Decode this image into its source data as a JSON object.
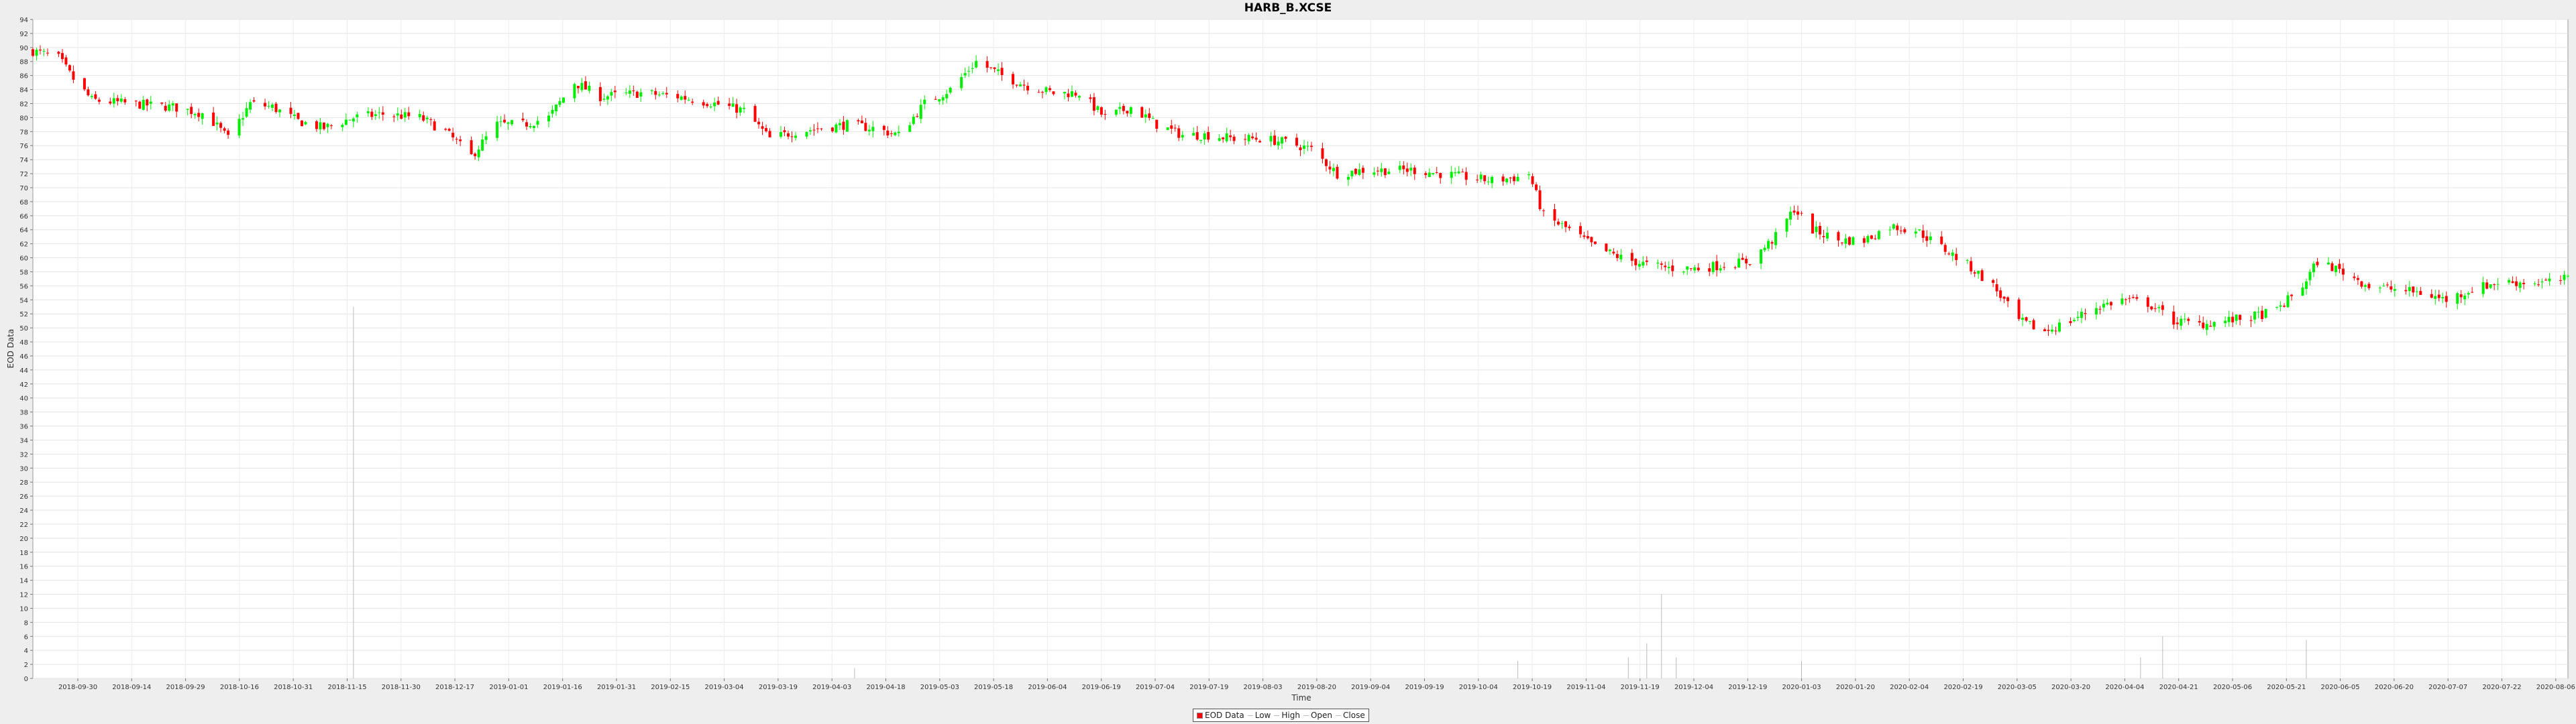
{
  "chart_data": {
    "type": "candlestick",
    "title": "HARB_B.XCSE",
    "xlabel": "Time",
    "ylabel": "EOD Data",
    "ylim": [
      0,
      94
    ],
    "xlim": [
      "2018-09-24",
      "2020-08-12"
    ],
    "grid": true,
    "legend_position": "bottom-center",
    "y_ticks": [
      0,
      2,
      4,
      6,
      8,
      10,
      12,
      14,
      16,
      18,
      20,
      22,
      24,
      26,
      28,
      30,
      32,
      34,
      36,
      38,
      40,
      42,
      44,
      46,
      48,
      50,
      52,
      54,
      56,
      58,
      60,
      62,
      64,
      66,
      68,
      70,
      72,
      74,
      76,
      78,
      80,
      82,
      84,
      86,
      88,
      90,
      92,
      94
    ],
    "x_ticks": [
      "2018-09-30",
      "2018-09-14",
      "2018-09-29",
      "2018-10-16",
      "2018-10-31",
      "2018-11-15",
      "2018-11-30",
      "2018-12-17",
      "2019-01-01",
      "2019-01-16",
      "2019-01-31",
      "2019-02-15",
      "2019-03-04",
      "2019-03-19",
      "2019-04-03",
      "2019-04-18",
      "2019-05-03",
      "2019-05-18",
      "2019-06-04",
      "2019-06-19",
      "2019-07-04",
      "2019-07-19",
      "2019-08-03",
      "2019-08-20",
      "2019-09-04",
      "2019-09-19",
      "2019-10-04",
      "2019-10-19",
      "2019-11-04",
      "2019-11-19",
      "2019-12-04",
      "2019-12-19",
      "2020-01-03",
      "2020-01-20",
      "2020-02-04",
      "2020-02-19",
      "2020-03-05",
      "2020-03-20",
      "2020-04-04",
      "2020-04-21",
      "2020-05-06",
      "2020-05-21",
      "2020-06-05",
      "2020-06-20",
      "2020-07-07",
      "2020-07-22",
      "2020-08-06"
    ],
    "legend": [
      {
        "label": "EOD Data",
        "color": "#ff0000"
      },
      {
        "label": "Low",
        "color": "#bbbbbb"
      },
      {
        "label": "High",
        "color": "#bbbbbb"
      },
      {
        "label": "Open",
        "color": "#bbbbbb"
      },
      {
        "label": "Close",
        "color": "#bbbbbb"
      }
    ],
    "colors": {
      "up": "#00ee00",
      "down": "#ff0000",
      "volume": "#bbbbbb"
    },
    "close_series": [
      {
        "date": "2018-09-24",
        "value": 89.5
      },
      {
        "date": "2018-10-01",
        "value": 88.5
      },
      {
        "date": "2018-10-05",
        "value": 85.5
      },
      {
        "date": "2018-10-10",
        "value": 82.5
      },
      {
        "date": "2018-10-20",
        "value": 82.0
      },
      {
        "date": "2018-11-01",
        "value": 81.5
      },
      {
        "date": "2018-11-10",
        "value": 80.5
      },
      {
        "date": "2018-11-16",
        "value": 77.0
      },
      {
        "date": "2018-11-22",
        "value": 82.0
      },
      {
        "date": "2018-11-28",
        "value": 81.5
      },
      {
        "date": "2018-12-05",
        "value": 79.5
      },
      {
        "date": "2018-12-12",
        "value": 78.5
      },
      {
        "date": "2018-12-20",
        "value": 80.0
      },
      {
        "date": "2018-12-28",
        "value": 80.5
      },
      {
        "date": "2019-01-07",
        "value": 80.0
      },
      {
        "date": "2019-01-14",
        "value": 78.0
      },
      {
        "date": "2019-01-21",
        "value": 74.5
      },
      {
        "date": "2019-01-28",
        "value": 79.0
      },
      {
        "date": "2019-02-04",
        "value": 79.0
      },
      {
        "date": "2019-02-11",
        "value": 80.0
      },
      {
        "date": "2019-02-18",
        "value": 85.0
      },
      {
        "date": "2019-02-25",
        "value": 83.0
      },
      {
        "date": "2019-03-08",
        "value": 83.5
      },
      {
        "date": "2019-03-18",
        "value": 83.0
      },
      {
        "date": "2019-03-28",
        "value": 82.0
      },
      {
        "date": "2019-04-05",
        "value": 81.0
      },
      {
        "date": "2019-04-12",
        "value": 77.0
      },
      {
        "date": "2019-04-19",
        "value": 78.0
      },
      {
        "date": "2019-04-26",
        "value": 78.5
      },
      {
        "date": "2019-05-03",
        "value": 79.0
      },
      {
        "date": "2019-05-10",
        "value": 78.5
      },
      {
        "date": "2019-05-17",
        "value": 77.5
      },
      {
        "date": "2019-05-24",
        "value": 82.0
      },
      {
        "date": "2019-05-31",
        "value": 84.0
      },
      {
        "date": "2019-06-07",
        "value": 88.0
      },
      {
        "date": "2019-06-14",
        "value": 86.0
      },
      {
        "date": "2019-06-21",
        "value": 84.5
      },
      {
        "date": "2019-06-28",
        "value": 83.5
      },
      {
        "date": "2019-07-05",
        "value": 83.5
      },
      {
        "date": "2019-07-12",
        "value": 80.0
      },
      {
        "date": "2019-07-19",
        "value": 81.5
      },
      {
        "date": "2019-07-26",
        "value": 79.0
      },
      {
        "date": "2019-08-02",
        "value": 77.5
      },
      {
        "date": "2019-08-09",
        "value": 77.5
      },
      {
        "date": "2019-08-16",
        "value": 77.0
      },
      {
        "date": "2019-08-23",
        "value": 77.0
      },
      {
        "date": "2019-08-30",
        "value": 76.5
      },
      {
        "date": "2019-09-06",
        "value": 75.5
      },
      {
        "date": "2019-09-13",
        "value": 72.0
      },
      {
        "date": "2019-09-20",
        "value": 72.5
      },
      {
        "date": "2019-09-27",
        "value": 72.5
      },
      {
        "date": "2019-10-04",
        "value": 72.5
      },
      {
        "date": "2019-10-11",
        "value": 72.0
      },
      {
        "date": "2019-10-18",
        "value": 71.5
      },
      {
        "date": "2019-10-25",
        "value": 71.0
      },
      {
        "date": "2019-11-01",
        "value": 71.5
      },
      {
        "date": "2019-11-04",
        "value": 72.0
      },
      {
        "date": "2019-11-08",
        "value": 66.0
      },
      {
        "date": "2019-11-15",
        "value": 64.0
      },
      {
        "date": "2019-11-22",
        "value": 61.5
      },
      {
        "date": "2019-11-29",
        "value": 60.0
      },
      {
        "date": "2019-12-06",
        "value": 59.0
      },
      {
        "date": "2019-12-13",
        "value": 58.5
      },
      {
        "date": "2019-12-20",
        "value": 58.5
      },
      {
        "date": "2020-01-03",
        "value": 59.5
      },
      {
        "date": "2020-01-10",
        "value": 63.0
      },
      {
        "date": "2020-01-15",
        "value": 67.0
      },
      {
        "date": "2020-01-20",
        "value": 64.0
      },
      {
        "date": "2020-01-27",
        "value": 62.5
      },
      {
        "date": "2020-02-03",
        "value": 62.5
      },
      {
        "date": "2020-02-10",
        "value": 64.5
      },
      {
        "date": "2020-02-17",
        "value": 64.0
      },
      {
        "date": "2020-02-24",
        "value": 61.5
      },
      {
        "date": "2020-03-02",
        "value": 59.0
      },
      {
        "date": "2020-03-09",
        "value": 56.0
      },
      {
        "date": "2020-03-16",
        "value": 51.0
      },
      {
        "date": "2020-03-23",
        "value": 49.5
      },
      {
        "date": "2020-03-30",
        "value": 51.0
      },
      {
        "date": "2020-04-06",
        "value": 53.0
      },
      {
        "date": "2020-04-13",
        "value": 54.0
      },
      {
        "date": "2020-04-20",
        "value": 53.5
      },
      {
        "date": "2020-04-27",
        "value": 51.0
      },
      {
        "date": "2020-05-04",
        "value": 50.5
      },
      {
        "date": "2020-05-11",
        "value": 51.0
      },
      {
        "date": "2020-05-18",
        "value": 51.5
      },
      {
        "date": "2020-05-25",
        "value": 52.5
      },
      {
        "date": "2020-06-01",
        "value": 56.0
      },
      {
        "date": "2020-06-05",
        "value": 59.5
      },
      {
        "date": "2020-06-12",
        "value": 58.0
      },
      {
        "date": "2020-06-19",
        "value": 56.0
      },
      {
        "date": "2020-06-26",
        "value": 55.5
      },
      {
        "date": "2020-07-03",
        "value": 55.0
      },
      {
        "date": "2020-07-10",
        "value": 54.0
      },
      {
        "date": "2020-07-17",
        "value": 55.5
      },
      {
        "date": "2020-07-24",
        "value": 56.5
      },
      {
        "date": "2020-07-31",
        "value": 56.5
      },
      {
        "date": "2020-08-07",
        "value": 56.5
      },
      {
        "date": "2020-08-12",
        "value": 57.0
      }
    ],
    "volume_spikes": [
      {
        "date": "2018-12-20",
        "value": 53
      },
      {
        "date": "2019-05-05",
        "value": 1.5
      },
      {
        "date": "2019-11-01",
        "value": 2.5
      },
      {
        "date": "2019-12-01",
        "value": 3
      },
      {
        "date": "2019-12-06",
        "value": 5
      },
      {
        "date": "2019-12-10",
        "value": 12
      },
      {
        "date": "2019-12-14",
        "value": 3
      },
      {
        "date": "2020-01-17",
        "value": 2.5
      },
      {
        "date": "2020-04-18",
        "value": 3
      },
      {
        "date": "2020-04-24",
        "value": 6
      },
      {
        "date": "2020-06-02",
        "value": 5.5
      }
    ]
  }
}
